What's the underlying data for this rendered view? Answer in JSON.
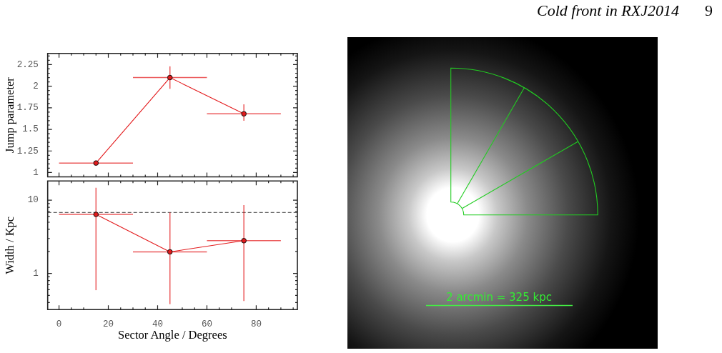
{
  "chart_data": [
    {
      "type": "line",
      "ylabel": "Jump parameter",
      "x": [
        15,
        45,
        75
      ],
      "values": [
        1.11,
        2.1,
        1.68
      ],
      "color": "#e31a1c",
      "errors": [
        null,
        [
          1.97,
          2.23
        ],
        [
          1.6,
          1.79
        ]
      ],
      "xerrors": [
        15,
        15,
        15
      ],
      "marker": "circle",
      "xlim": [
        -4.6,
        96.7
      ],
      "xticks": [
        0,
        {
          "value": 5,
          "label": null
        },
        {
          "value": 10,
          "label": null
        },
        {
          "value": 15,
          "label": null
        },
        20,
        {
          "value": 25,
          "label": null
        },
        {
          "value": 30,
          "label": null
        },
        {
          "value": 35,
          "label": null
        },
        40,
        {
          "value": 45,
          "label": null
        },
        {
          "value": 50,
          "label": null
        },
        {
          "value": 55,
          "label": null
        },
        60,
        {
          "value": 65,
          "label": null
        },
        {
          "value": 70,
          "label": null
        },
        {
          "value": 75,
          "label": null
        },
        80,
        {
          "value": 85,
          "label": null
        },
        {
          "value": 90,
          "label": null
        },
        {
          "value": 95,
          "label": null
        }
      ],
      "ylim": [
        0.95,
        2.38
      ],
      "yticks": [
        1,
        {
          "value": 1.05,
          "label": null
        },
        {
          "value": 1.1,
          "label": null
        },
        {
          "value": 1.15,
          "label": null
        },
        {
          "value": 1.2,
          "label": null
        },
        1.25,
        {
          "value": 1.3,
          "label": null
        },
        {
          "value": 1.35,
          "label": null
        },
        {
          "value": 1.4,
          "label": null
        },
        {
          "value": 1.45,
          "label": null
        },
        1.5,
        {
          "value": 1.55,
          "label": null
        },
        {
          "value": 1.6,
          "label": null
        },
        {
          "value": 1.65,
          "label": null
        },
        {
          "value": 1.7,
          "label": null
        },
        1.75,
        {
          "value": 1.8,
          "label": null
        },
        {
          "value": 1.85,
          "label": null
        },
        {
          "value": 1.9,
          "label": null
        },
        {
          "value": 1.95,
          "label": null
        },
        2,
        {
          "value": 2.05,
          "label": null
        },
        {
          "value": 2.1,
          "label": null
        },
        {
          "value": 2.15,
          "label": null
        },
        {
          "value": 2.2,
          "label": null
        },
        2.25,
        {
          "value": 2.3,
          "label": null
        },
        {
          "value": 2.35,
          "label": null
        }
      ],
      "tick_labels": "y"
    },
    {
      "type": "line",
      "xlabel": "Sector Angle / Degrees",
      "ylabel": "Width / Kpc",
      "x": [
        15,
        45,
        75
      ],
      "values": [
        6.4,
        1.97,
        2.8
      ],
      "color": "#e31a1c",
      "errors": [
        [
          0.59,
          14.8
        ],
        [
          0.38,
          6.8
        ],
        [
          0.42,
          8.6
        ]
      ],
      "xerrors": [
        15,
        15,
        15
      ],
      "marker": "circle",
      "log": true,
      "xlim": [
        -4.6,
        96.7
      ],
      "xticks": [
        0,
        {
          "value": 5,
          "label": null
        },
        {
          "value": 10,
          "label": null
        },
        20,
        {
          "value": 25,
          "label": null
        },
        {
          "value": 30,
          "label": null
        },
        {
          "value": 35,
          "label": null
        },
        40,
        {
          "value": 50,
          "label": null
        },
        {
          "value": 55,
          "label": null
        },
        60,
        {
          "value": 65,
          "label": null
        },
        {
          "value": 70,
          "label": null
        },
        80,
        {
          "value": 85,
          "label": null
        },
        {
          "value": 90,
          "label": null
        },
        {
          "value": 95,
          "label": null
        }
      ],
      "ylim": [
        0.32,
        18.3
      ],
      "yticks": [
        {
          "value": 0.4,
          "label": null
        },
        {
          "value": 0.5,
          "label": null
        },
        {
          "value": 0.6,
          "label": null
        },
        {
          "value": 0.7,
          "label": null
        },
        {
          "value": 0.8,
          "label": null
        },
        {
          "value": 0.9,
          "label": null
        },
        1,
        {
          "value": 2,
          "label": null
        },
        {
          "value": 3,
          "label": null
        },
        {
          "value": 4,
          "label": null
        },
        {
          "value": 5,
          "label": null
        },
        {
          "value": 6,
          "label": null
        },
        {
          "value": 7,
          "label": null
        },
        {
          "value": 8,
          "label": null
        },
        {
          "value": 9,
          "label": null
        },
        10
      ],
      "ref_lines": [
        {
          "axis": "y",
          "value": 6.8,
          "color": "#666666",
          "line_style": "dashed"
        }
      ]
    },
    {
      "type": "other",
      "annotations": [
        "Cold front in RXJ2014",
        "9",
        "2 arcmin = 325 kpc"
      ]
    }
  ]
}
